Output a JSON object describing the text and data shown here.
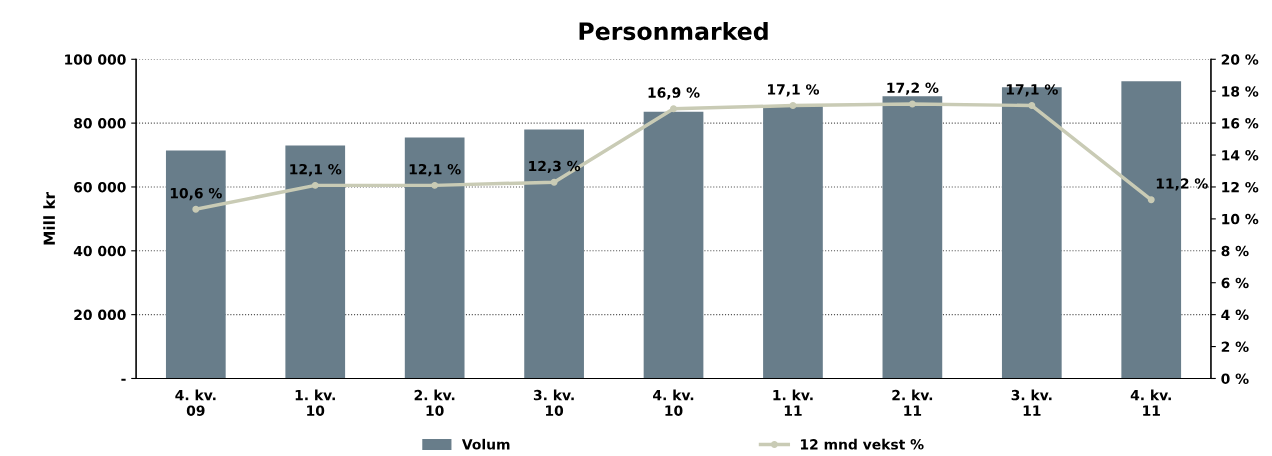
{
  "chart_data": {
    "type": "bar",
    "title": "Personmarked",
    "ylabel": "Mill kr",
    "categories": [
      "4. kv.\n09",
      "1. kv.\n10",
      "2. kv.\n10",
      "3. kv.\n10",
      "4. kv.\n10",
      "1. kv.\n11",
      "2. kv.\n11",
      "3. kv.\n11",
      "4. kv.\n11"
    ],
    "series": [
      {
        "name": "Volum",
        "color": "#687d8a",
        "values": [
          71400,
          73000,
          75500,
          78000,
          83600,
          85500,
          88400,
          91200,
          93100
        ]
      },
      {
        "name": "12 mnd vekst %",
        "type": "line",
        "axis": "y2",
        "color": "#c9cbb5",
        "marker": "circle",
        "values": [
          10.6,
          12.1,
          12.1,
          12.3,
          16.9,
          17.1,
          17.2,
          17.1,
          11.2
        ],
        "value_labels": [
          "10,6 %",
          "12,1 %",
          "12,1 %",
          "12,3 %",
          "16,9 %",
          "17,1 %",
          "17,2 %",
          "17,1 %",
          "11,2 %"
        ]
      }
    ],
    "ylim": [
      0,
      100000
    ],
    "yticks": [
      {
        "value": 0,
        "label": "-"
      },
      {
        "value": 20000,
        "label": "20 000"
      },
      {
        "value": 40000,
        "label": "40 000"
      },
      {
        "value": 60000,
        "label": "60 000"
      },
      {
        "value": 80000,
        "label": "80 000"
      },
      {
        "value": 100000,
        "label": "100 000"
      }
    ],
    "y2lim": [
      0,
      20
    ],
    "y2ticks": [
      {
        "value": 0,
        "label": "0 %"
      },
      {
        "value": 2,
        "label": "2 %"
      },
      {
        "value": 4,
        "label": "4 %"
      },
      {
        "value": 6,
        "label": "6 %"
      },
      {
        "value": 8,
        "label": "8 %"
      },
      {
        "value": 10,
        "label": "10 %"
      },
      {
        "value": 12,
        "label": "12 %"
      },
      {
        "value": 14,
        "label": "14 %"
      },
      {
        "value": 16,
        "label": "16 %"
      },
      {
        "value": 18,
        "label": "18 %"
      },
      {
        "value": 20,
        "label": "20 %"
      }
    ],
    "grid": "y",
    "legend": "bottom"
  }
}
